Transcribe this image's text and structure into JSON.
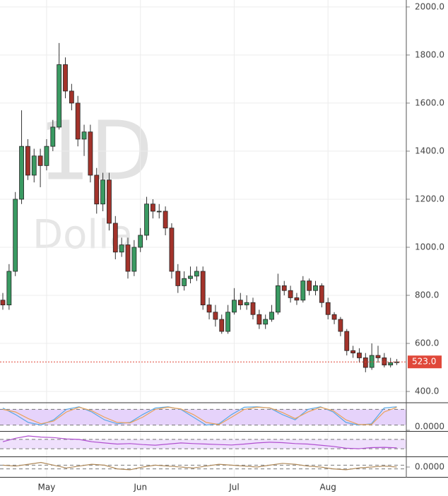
{
  "chart_data": {
    "type": "candlestick",
    "watermark_interval": "1D",
    "watermark_text": "Dolla",
    "categories": [
      null,
      null,
      null,
      null,
      null,
      null,
      null,
      "May",
      null,
      null,
      null,
      null,
      null,
      null,
      null,
      null,
      null,
      null,
      null,
      null,
      null,
      null,
      "Jun",
      null,
      null,
      null,
      null,
      null,
      null,
      null,
      null,
      null,
      null,
      null,
      null,
      null,
      null,
      "Jul",
      null,
      null,
      null,
      null,
      null,
      null,
      null,
      null,
      null,
      null,
      null,
      null,
      null,
      null,
      "Aug",
      null,
      null,
      null,
      null,
      null,
      null,
      null,
      null,
      null,
      null,
      null
    ],
    "open": [
      780,
      760,
      900,
      1200,
      1420,
      1300,
      1380,
      1340,
      1420,
      1500,
      1760,
      1650,
      1600,
      1450,
      1480,
      1300,
      1180,
      1280,
      1100,
      980,
      1010,
      900,
      1000,
      1050,
      1180,
      1150,
      1150,
      1080,
      900,
      840,
      870,
      880,
      900,
      760,
      730,
      700,
      650,
      730,
      780,
      760,
      770,
      720,
      680,
      700,
      730,
      840,
      820,
      790,
      780,
      860,
      820,
      840,
      770,
      720,
      700,
      650,
      570,
      560,
      540,
      500,
      550,
      540,
      510,
      520
    ],
    "high": [
      810,
      930,
      1230,
      1570,
      1450,
      1410,
      1410,
      1450,
      1530,
      1850,
      1790,
      1680,
      1630,
      1510,
      1510,
      1330,
      1310,
      1310,
      1130,
      1040,
      1040,
      1030,
      1080,
      1210,
      1200,
      1180,
      1170,
      1100,
      930,
      900,
      920,
      920,
      920,
      790,
      760,
      720,
      760,
      830,
      810,
      800,
      790,
      740,
      720,
      760,
      890,
      860,
      840,
      810,
      880,
      870,
      860,
      850,
      790,
      730,
      710,
      660,
      590,
      580,
      560,
      600,
      590,
      560,
      540,
      535
    ],
    "low": [
      740,
      740,
      880,
      1180,
      1280,
      1270,
      1250,
      1320,
      1400,
      1490,
      1620,
      1570,
      1420,
      1380,
      1270,
      1140,
      1150,
      1070,
      950,
      960,
      870,
      880,
      980,
      1030,
      1120,
      1120,
      1050,
      870,
      810,
      820,
      850,
      860,
      740,
      700,
      670,
      640,
      640,
      720,
      740,
      740,
      700,
      660,
      660,
      690,
      720,
      800,
      770,
      760,
      770,
      800,
      800,
      750,
      700,
      680,
      630,
      550,
      540,
      520,
      480,
      490,
      520,
      500,
      500,
      510
    ],
    "close": [
      760,
      900,
      1200,
      1420,
      1300,
      1380,
      1340,
      1420,
      1500,
      1760,
      1650,
      1600,
      1450,
      1480,
      1300,
      1180,
      1280,
      1100,
      980,
      1010,
      900,
      1000,
      1050,
      1180,
      1150,
      1150,
      1080,
      900,
      840,
      870,
      880,
      900,
      760,
      730,
      700,
      650,
      730,
      780,
      760,
      770,
      720,
      680,
      700,
      730,
      840,
      820,
      790,
      780,
      860,
      820,
      840,
      770,
      720,
      700,
      650,
      570,
      560,
      540,
      500,
      550,
      540,
      510,
      520,
      523
    ],
    "up_color": "#3a9a62",
    "down_color": "#a3332b",
    "ylim": [
      359,
      2029
    ],
    "yticks": [
      {
        "value": 400,
        "label": "400.0"
      },
      {
        "value": 600,
        "label": "600.0"
      },
      {
        "value": 800,
        "label": "800.0"
      },
      {
        "value": 1000,
        "label": "1000.0"
      },
      {
        "value": 1200,
        "label": "1200.0"
      },
      {
        "value": 1400,
        "label": "1400.0"
      },
      {
        "value": 1600,
        "label": "1600.0"
      },
      {
        "value": 1800,
        "label": "1800.0"
      },
      {
        "value": 2000,
        "label": "2000.0"
      }
    ],
    "grid": true,
    "last_price": {
      "value": 523,
      "label": "523.0",
      "color": "#e0483a"
    },
    "indicators": [
      {
        "ylim": [
          0,
          100
        ],
        "band": [
          20,
          80
        ],
        "band_color": "#e6d3fb",
        "yticks": [
          {
            "value": 0,
            "label": "0.0000"
          }
        ],
        "series": [
          {
            "color": "#5aa9e6",
            "values": [
              85,
              60,
              30,
              20,
              40,
              80,
              90,
              70,
              40,
              25,
              30,
              60,
              85,
              90,
              80,
              50,
              20,
              25,
              60,
              88,
              90,
              85,
              60,
              40,
              80,
              90,
              70,
              30,
              20,
              25,
              85,
              90
            ]
          },
          {
            "color": "#e8a25a",
            "values": [
              80,
              70,
              45,
              25,
              35,
              70,
              88,
              75,
              50,
              30,
              28,
              50,
              80,
              88,
              82,
              60,
              30,
              22,
              50,
              80,
              88,
              86,
              68,
              45,
              70,
              88,
              75,
              40,
              22,
              22,
              70,
              88
            ]
          }
        ]
      },
      {
        "ylim": [
          0,
          100
        ],
        "band": [
          30,
          70
        ],
        "band_color": "#efe0fc",
        "series": [
          {
            "color": "#b04fd0",
            "values": [
              60,
              75,
              85,
              80,
              78,
              72,
              70,
              60,
              55,
              50,
              52,
              48,
              45,
              50,
              55,
              52,
              50,
              48,
              46,
              50,
              55,
              58,
              56,
              52,
              50,
              45,
              40,
              32,
              30,
              35,
              36,
              34
            ]
          }
        ]
      },
      {
        "ylim": [
          -1,
          1
        ],
        "band": [
          -0.2,
          0.2
        ],
        "band_color": "#ffffff",
        "yticks": [
          {
            "value": 0,
            "label": "0.0000"
          }
        ],
        "series": [
          {
            "color": "#b08a5a",
            "values": [
              0.2,
              0.1,
              0.3,
              0.5,
              0.2,
              -0.1,
              0.1,
              0.3,
              0.2,
              -0.2,
              -0.3,
              0,
              0.2,
              0.1,
              0,
              -0.1,
              0.1,
              0.3,
              0.2,
              0.1,
              0,
              0.2,
              0.4,
              0.3,
              0.1,
              0,
              -0.2,
              -0.3,
              -0.1,
              0,
              0.1,
              0
            ]
          }
        ]
      }
    ]
  }
}
